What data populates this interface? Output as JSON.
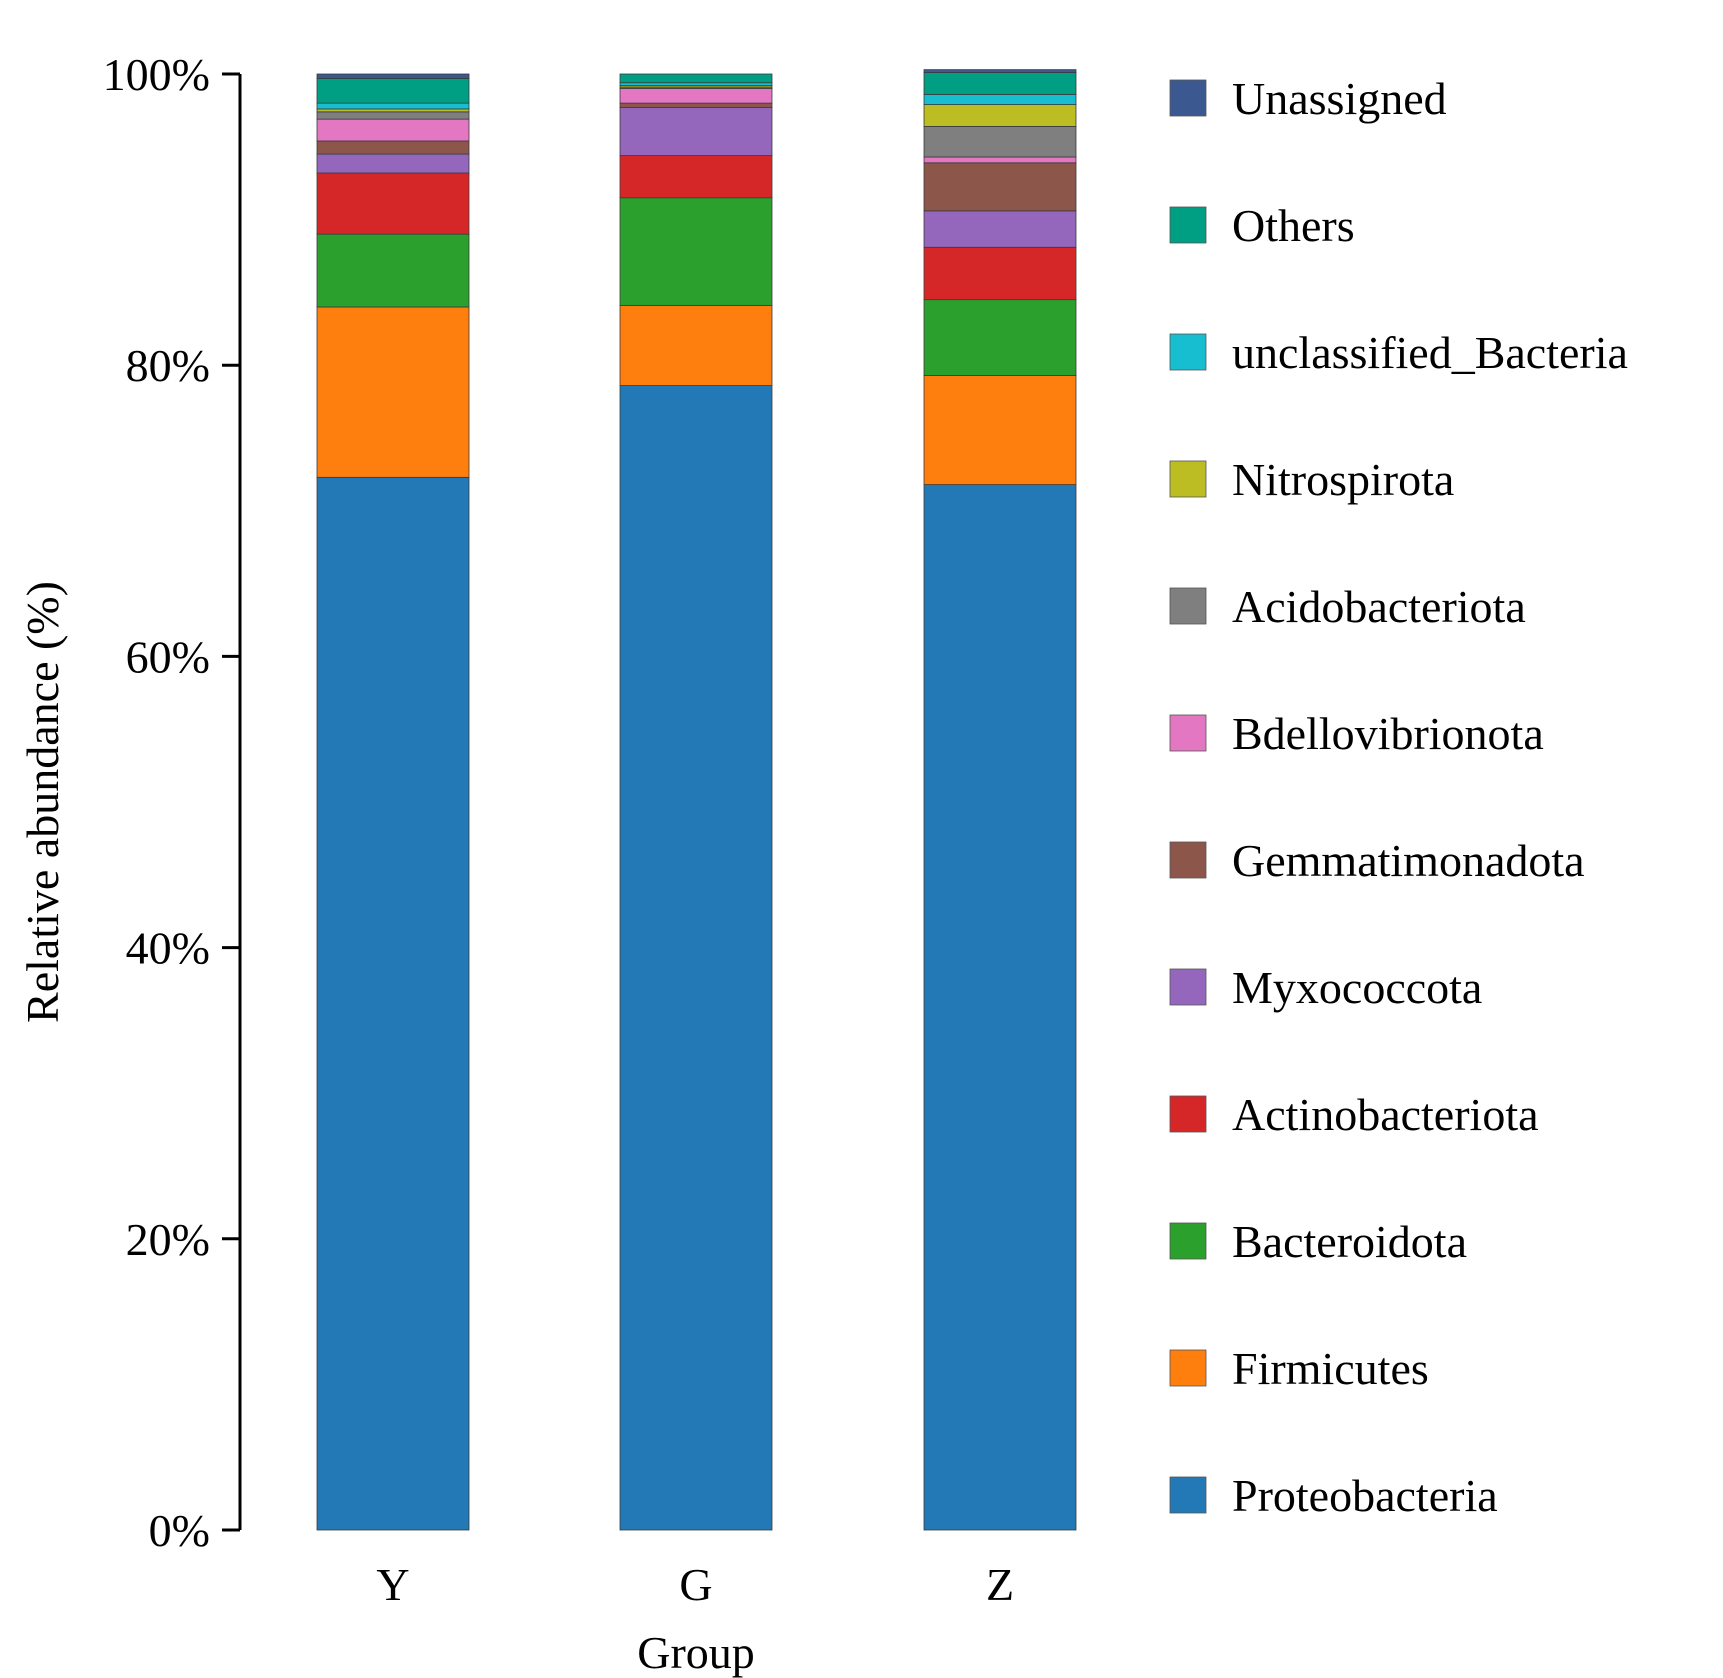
{
  "chart_data": {
    "type": "bar",
    "stacked": true,
    "xlabel": "Group",
    "ylabel": "Relative abundance (%)",
    "ylim": [
      0,
      100
    ],
    "yticks": [
      {
        "value": 0,
        "label": "0%"
      },
      {
        "value": 20,
        "label": "20%"
      },
      {
        "value": 40,
        "label": "40%"
      },
      {
        "value": 60,
        "label": "60%"
      },
      {
        "value": 80,
        "label": "80%"
      },
      {
        "value": 100,
        "label": "100%"
      }
    ],
    "legend_position": "right",
    "categories": [
      "Y",
      "G",
      "Z"
    ],
    "series": [
      {
        "name": "Proteobacteria",
        "color": "#2279b5",
        "values": [
          72.3,
          78.6,
          71.8
        ]
      },
      {
        "name": "Firmicutes",
        "color": "#ff7f0e",
        "values": [
          11.7,
          5.5,
          7.5
        ]
      },
      {
        "name": "Bacteroidota",
        "color": "#2ca02c",
        "values": [
          5.0,
          7.4,
          5.2
        ]
      },
      {
        "name": "Actinobacteriota",
        "color": "#d62728",
        "values": [
          4.2,
          2.9,
          3.6
        ]
      },
      {
        "name": "Myxococcota",
        "color": "#9467bd",
        "values": [
          1.3,
          3.3,
          2.5
        ]
      },
      {
        "name": "Gemmatimonadota",
        "color": "#8c564b",
        "values": [
          0.9,
          0.3,
          3.3
        ]
      },
      {
        "name": "Bdellovibrionota",
        "color": "#e377c2",
        "values": [
          1.5,
          1.0,
          0.4
        ]
      },
      {
        "name": "Acidobacteriota",
        "color": "#7f7f7f",
        "values": [
          0.5,
          0.1,
          2.1
        ]
      },
      {
        "name": "Nitrospirota",
        "color": "#bcbd22",
        "values": [
          0.2,
          0.1,
          1.5
        ]
      },
      {
        "name": "unclassified_Bacteria",
        "color": "#17becf",
        "values": [
          0.4,
          0.2,
          0.7
        ]
      },
      {
        "name": "Others",
        "color": "#009e82",
        "values": [
          1.7,
          0.6,
          1.5
        ]
      },
      {
        "name": "Unassigned",
        "color": "#3b5990",
        "values": [
          0.3,
          0.0,
          0.2
        ]
      }
    ]
  }
}
